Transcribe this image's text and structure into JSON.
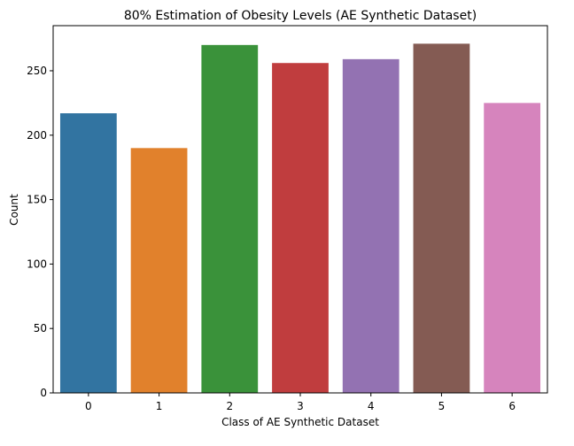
{
  "chart_data": {
    "type": "bar",
    "title": "80% Estimation of Obesity Levels (AE Synthetic Dataset)",
    "xlabel": "Class of AE Synthetic Dataset",
    "ylabel": "Count",
    "categories": [
      "0",
      "1",
      "2",
      "3",
      "4",
      "5",
      "6"
    ],
    "values": [
      217,
      190,
      270,
      256,
      259,
      271,
      225
    ],
    "ylim": [
      0,
      285
    ],
    "yticks": [
      0,
      50,
      100,
      150,
      200,
      250
    ],
    "grid": false,
    "legend": "none",
    "colors": [
      "#3274a1",
      "#e1812c",
      "#3a923a",
      "#c03d3e",
      "#9372b2",
      "#845b53",
      "#d684bd"
    ]
  }
}
